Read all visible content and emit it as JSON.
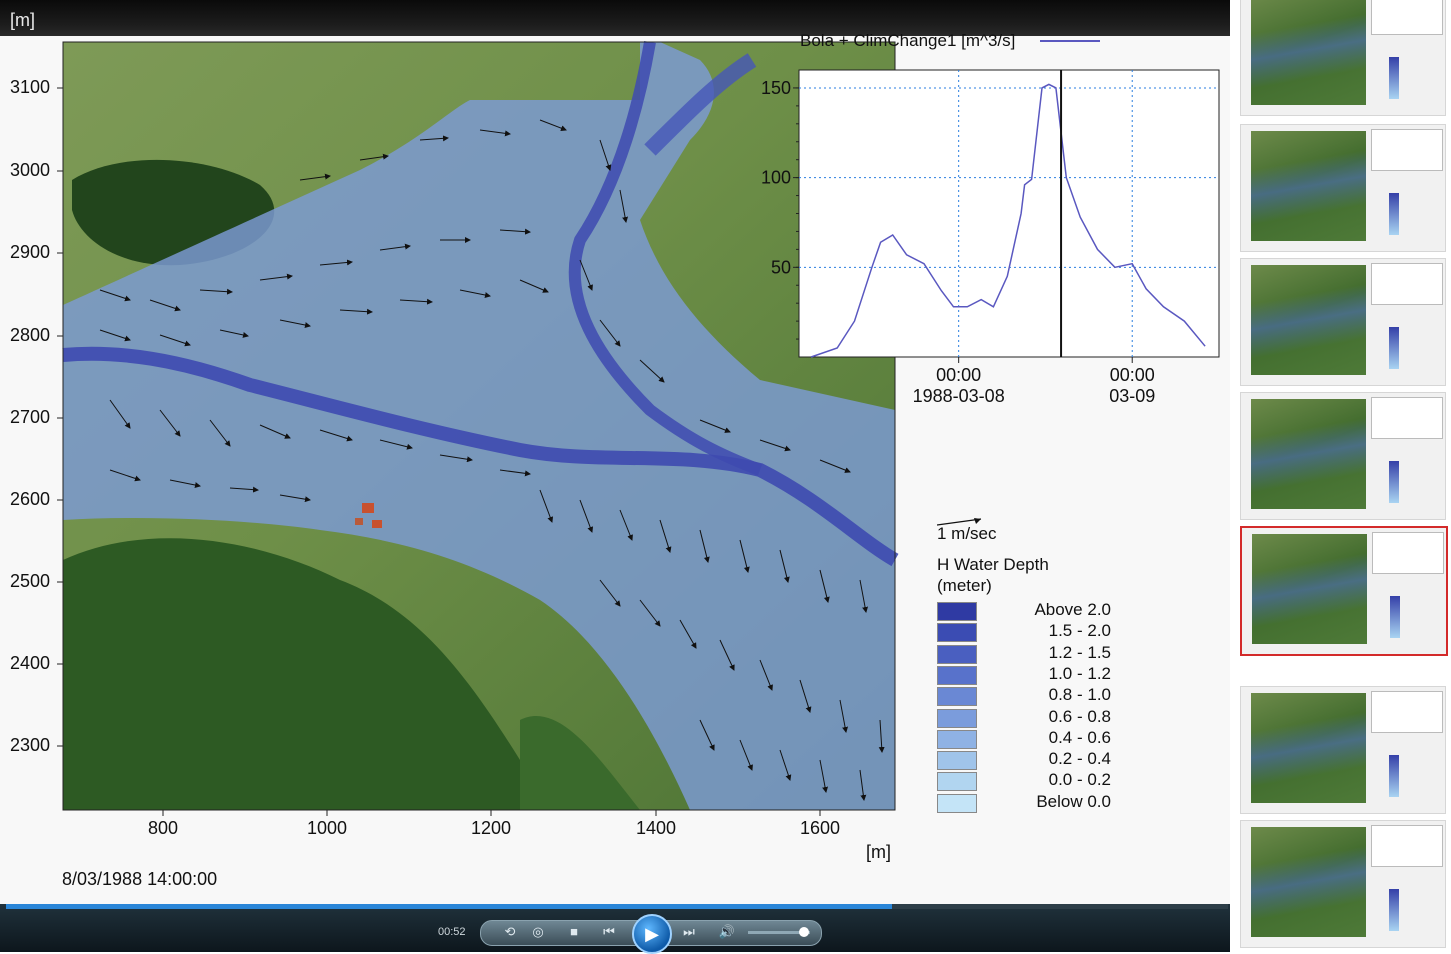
{
  "window": {
    "corner_unit": "[m]"
  },
  "map": {
    "y_ticks": [
      "3100",
      "3000",
      "2900",
      "2800",
      "2700",
      "2600",
      "2500",
      "2400",
      "2300"
    ],
    "x_ticks": [
      "800",
      "1000",
      "1200",
      "1400",
      "1600"
    ],
    "x_unit": "[m]",
    "timestamp": "8/03/1988 14:00:00"
  },
  "vector_scale": {
    "label": "1 m/sec"
  },
  "legend": {
    "title_line1": "H Water Depth",
    "title_line2": "(meter)",
    "items": [
      {
        "label": "Above 2.0",
        "color": "#2f3aa3"
      },
      {
        "label": "1.5 - 2.0",
        "color": "#3b4cb3"
      },
      {
        "label": "1.2 - 1.5",
        "color": "#4a5fc0"
      },
      {
        "label": "1.0 - 1.2",
        "color": "#5872cb"
      },
      {
        "label": "0.8 - 1.0",
        "color": "#6a88d4"
      },
      {
        "label": "0.6 - 0.8",
        "color": "#7b9cdc"
      },
      {
        "label": "0.4 - 0.6",
        "color": "#8fb2e4"
      },
      {
        "label": "0.2 - 0.4",
        "color": "#a0c4ea"
      },
      {
        "label": "0.0 - 0.2",
        "color": "#b1d5f0"
      },
      {
        "label": "Below 0.0",
        "color": "#c4e4f7"
      }
    ]
  },
  "chart_data": {
    "type": "line",
    "title": "Bola + ClimChange1 [m^3/s]",
    "series": [
      {
        "name": "Bola + ClimChange1 [m^3/s]",
        "color": "#5a58c0",
        "x": [
          -0.85,
          -0.7,
          -0.6,
          -0.5,
          -0.45,
          -0.38,
          -0.3,
          -0.2,
          -0.1,
          -0.03,
          0.05,
          0.13,
          0.2,
          0.28,
          0.36,
          0.38,
          0.42,
          0.48,
          0.52,
          0.56,
          0.62,
          0.7,
          0.8,
          0.9,
          1.0,
          1.08,
          1.18,
          1.3,
          1.42
        ],
        "y": [
          0,
          5,
          20,
          50,
          64,
          68,
          57,
          52,
          37,
          28,
          28,
          32,
          28,
          45,
          80,
          96,
          99,
          150,
          152,
          150,
          100,
          78,
          60,
          50,
          52,
          38,
          28,
          20,
          6
        ]
      }
    ],
    "x_ticks": [
      {
        "x": 0,
        "line1": "00:00",
        "line2": "1988-03-08"
      },
      {
        "x": 1,
        "line1": "00:00",
        "line2": "03-09"
      }
    ],
    "y_ticks": [
      50,
      100,
      150
    ],
    "xlim": [
      -0.92,
      1.5
    ],
    "ylim": [
      0,
      160
    ],
    "cursor_x": 0.59,
    "grid": "dotted blue"
  },
  "player": {
    "time": "00:52",
    "progress": 0.725,
    "volume": 0.9,
    "buttons": {
      "stop": "■",
      "prev": "⏮",
      "play": "▶",
      "next": "⏭",
      "mute": "🔊"
    }
  },
  "thumbnails": {
    "count": 7,
    "selected_index": 4
  }
}
